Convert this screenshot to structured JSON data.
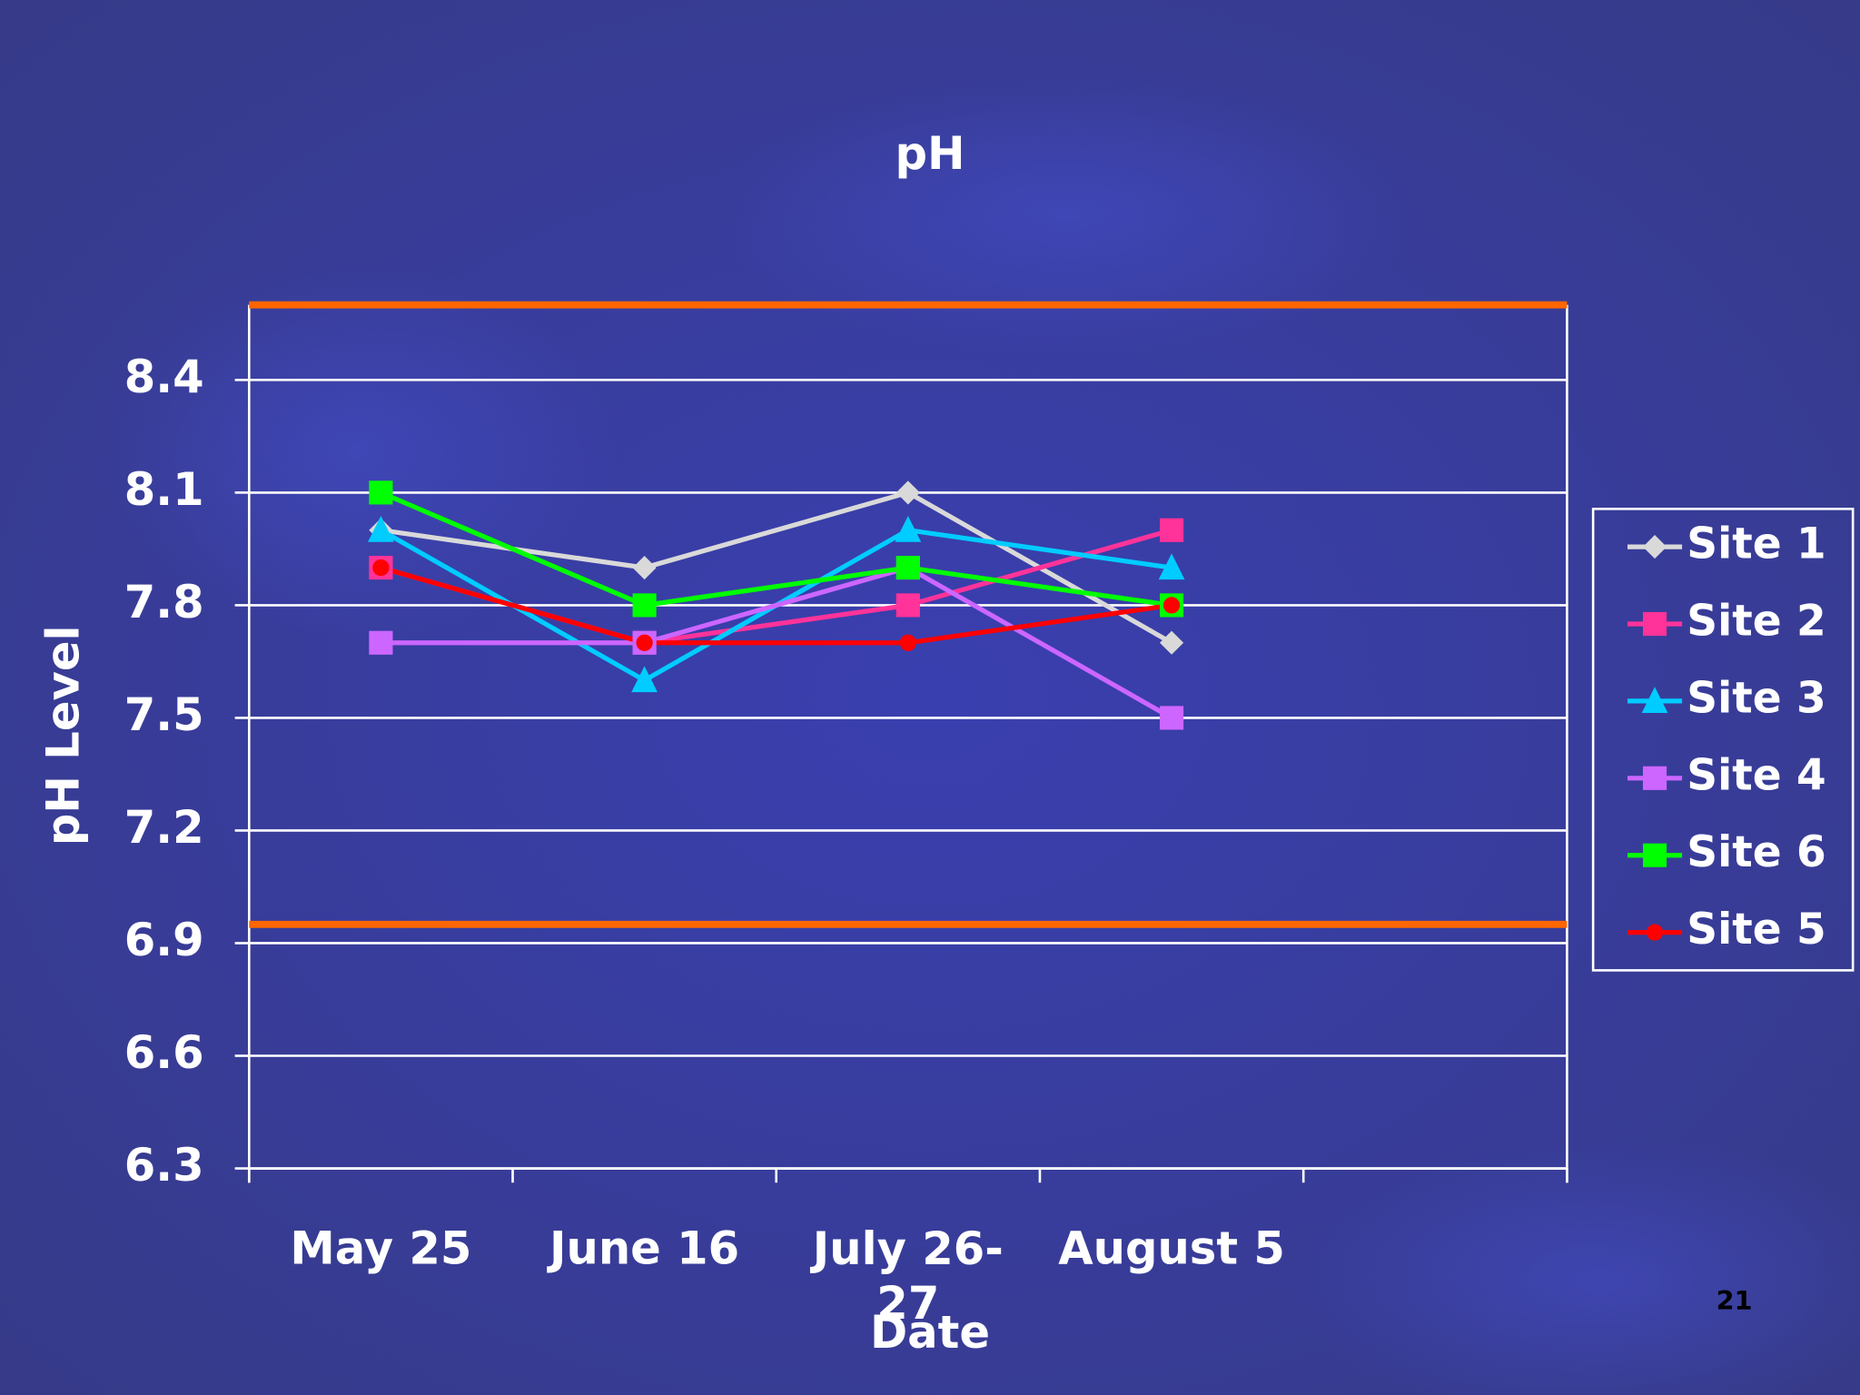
{
  "chart_data": {
    "type": "line",
    "title": "pH",
    "x_label": "Date",
    "y_label": "pH Level",
    "categories": [
      "May 25",
      "June 16",
      "July 26-27",
      "August 5",
      null
    ],
    "series": [
      {
        "name": "Site 1",
        "color": "#d9d9d9",
        "marker": "diamond",
        "values": [
          8.0,
          7.9,
          8.1,
          7.7,
          null
        ]
      },
      {
        "name": "Site 2",
        "color": "#ff3399",
        "marker": "square",
        "values": [
          7.9,
          7.7,
          7.8,
          8.0,
          null
        ]
      },
      {
        "name": "Site 3",
        "color": "#00ccff",
        "marker": "triangle",
        "values": [
          8.0,
          7.6,
          8.0,
          7.9,
          null
        ]
      },
      {
        "name": "Site 4",
        "color": "#cc66ff",
        "marker": "square",
        "values": [
          7.7,
          7.7,
          7.9,
          7.5,
          null
        ]
      },
      {
        "name": "Site 6",
        "color": "#00ff00",
        "marker": "square",
        "values": [
          8.1,
          7.8,
          7.9,
          7.8,
          null
        ]
      },
      {
        "name": "Site 5",
        "color": "#ff0000",
        "marker": "circle",
        "values": [
          7.9,
          7.7,
          7.7,
          7.8,
          null
        ]
      }
    ],
    "ylim": [
      6.3,
      8.6
    ],
    "yticks": [
      6.3,
      6.6,
      6.9,
      7.2,
      7.5,
      7.8,
      8.1,
      8.4
    ],
    "grid": true,
    "reference_lines": [
      {
        "value": 8.6,
        "color": "#ff6600"
      },
      {
        "value": 6.95,
        "color": "#ff6600"
      }
    ],
    "legend": "right"
  },
  "page_number": "21"
}
